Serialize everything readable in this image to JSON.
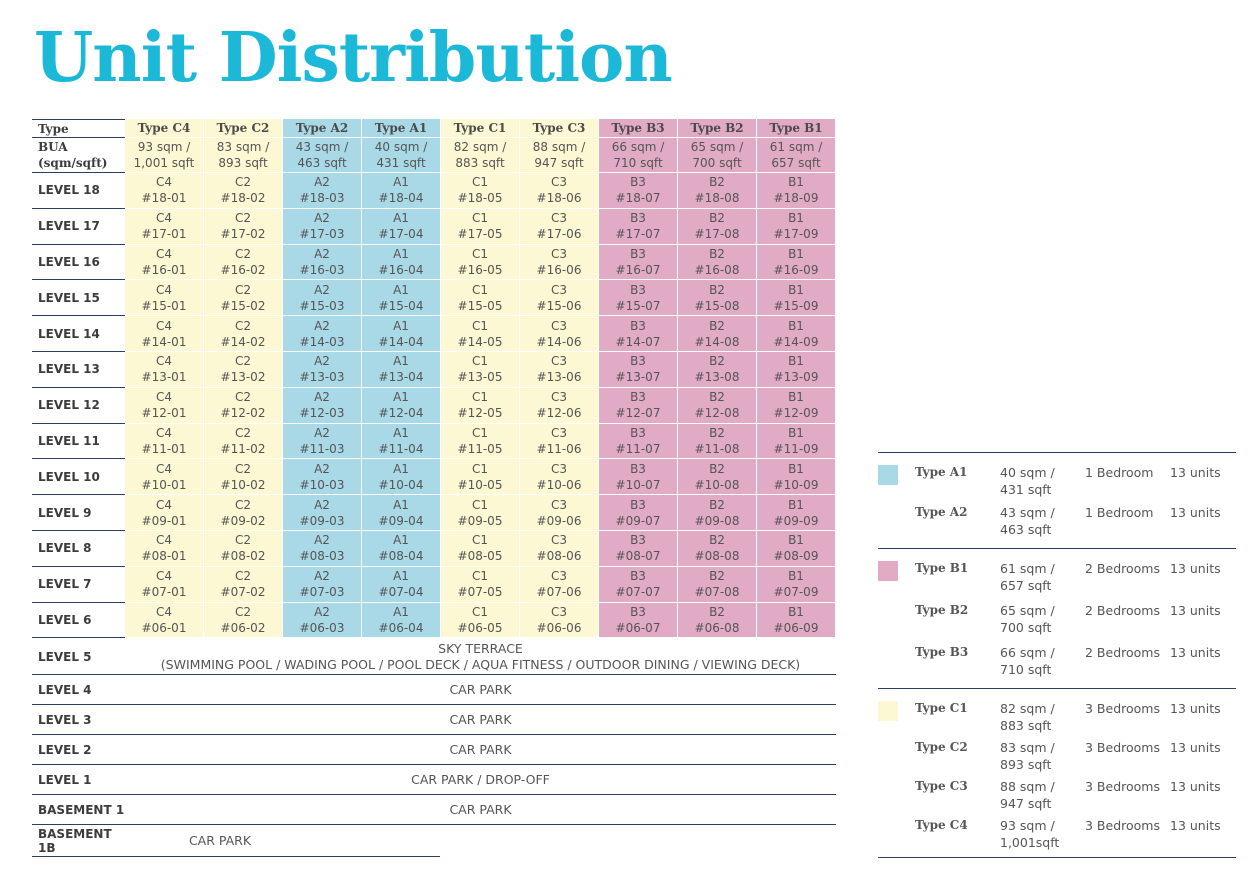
{
  "title": "Unit Distribution",
  "table": {
    "corner": "Type",
    "bua_label": [
      "BUA",
      "(sqm/sqft)"
    ],
    "columns": [
      {
        "name": "Type C4",
        "color": "#fcf8d3",
        "bua": [
          "93 sqm /",
          "1,001 sqft"
        ]
      },
      {
        "name": "Type C2",
        "color": "#fcf8d3",
        "bua": [
          "83 sqm /",
          "893 sqft"
        ]
      },
      {
        "name": "Type A2",
        "color": "#a9d9e7",
        "bua": [
          "43 sqm /",
          "463 sqft"
        ]
      },
      {
        "name": "Type A1",
        "color": "#a9d9e7",
        "bua": [
          "40 sqm /",
          "431 sqft"
        ]
      },
      {
        "name": "Type C1",
        "color": "#fcf8d3",
        "bua": [
          "82 sqm /",
          "883 sqft"
        ]
      },
      {
        "name": "Type C3",
        "color": "#fcf8d3",
        "bua": [
          "88 sqm /",
          "947 sqft"
        ]
      },
      {
        "name": "Type B3",
        "color": "#e2abc5",
        "bua": [
          "66 sqm /",
          "710 sqft"
        ]
      },
      {
        "name": "Type B2",
        "color": "#e2abc5",
        "bua": [
          "65 sqm /",
          "700 sqft"
        ]
      },
      {
        "name": "Type B1",
        "color": "#e2abc5",
        "bua": [
          "61 sqm /",
          "657 sqft"
        ]
      }
    ],
    "rows": [
      {
        "level": "LEVEL 18",
        "units": [
          [
            "C4",
            "#18-01"
          ],
          [
            "C2",
            "#18-02"
          ],
          [
            "A2",
            "#18-03"
          ],
          [
            "A1",
            "#18-04"
          ],
          [
            "C1",
            "#18-05"
          ],
          [
            "C3",
            "#18-06"
          ],
          [
            "B3",
            "#18-07"
          ],
          [
            "B2",
            "#18-08"
          ],
          [
            "B1",
            "#18-09"
          ]
        ]
      },
      {
        "level": "LEVEL 17",
        "units": [
          [
            "C4",
            "#17-01"
          ],
          [
            "C2",
            "#17-02"
          ],
          [
            "A2",
            "#17-03"
          ],
          [
            "A1",
            "#17-04"
          ],
          [
            "C1",
            "#17-05"
          ],
          [
            "C3",
            "#17-06"
          ],
          [
            "B3",
            "#17-07"
          ],
          [
            "B2",
            "#17-08"
          ],
          [
            "B1",
            "#17-09"
          ]
        ]
      },
      {
        "level": "LEVEL 16",
        "units": [
          [
            "C4",
            "#16-01"
          ],
          [
            "C2",
            "#16-02"
          ],
          [
            "A2",
            "#16-03"
          ],
          [
            "A1",
            "#16-04"
          ],
          [
            "C1",
            "#16-05"
          ],
          [
            "C3",
            "#16-06"
          ],
          [
            "B3",
            "#16-07"
          ],
          [
            "B2",
            "#16-08"
          ],
          [
            "B1",
            "#16-09"
          ]
        ]
      },
      {
        "level": "LEVEL 15",
        "units": [
          [
            "C4",
            "#15-01"
          ],
          [
            "C2",
            "#15-02"
          ],
          [
            "A2",
            "#15-03"
          ],
          [
            "A1",
            "#15-04"
          ],
          [
            "C1",
            "#15-05"
          ],
          [
            "C3",
            "#15-06"
          ],
          [
            "B3",
            "#15-07"
          ],
          [
            "B2",
            "#15-08"
          ],
          [
            "B1",
            "#15-09"
          ]
        ]
      },
      {
        "level": "LEVEL 14",
        "units": [
          [
            "C4",
            "#14-01"
          ],
          [
            "C2",
            "#14-02"
          ],
          [
            "A2",
            "#14-03"
          ],
          [
            "A1",
            "#14-04"
          ],
          [
            "C1",
            "#14-05"
          ],
          [
            "C3",
            "#14-06"
          ],
          [
            "B3",
            "#14-07"
          ],
          [
            "B2",
            "#14-08"
          ],
          [
            "B1",
            "#14-09"
          ]
        ]
      },
      {
        "level": "LEVEL 13",
        "units": [
          [
            "C4",
            "#13-01"
          ],
          [
            "C2",
            "#13-02"
          ],
          [
            "A2",
            "#13-03"
          ],
          [
            "A1",
            "#13-04"
          ],
          [
            "C1",
            "#13-05"
          ],
          [
            "C3",
            "#13-06"
          ],
          [
            "B3",
            "#13-07"
          ],
          [
            "B2",
            "#13-08"
          ],
          [
            "B1",
            "#13-09"
          ]
        ]
      },
      {
        "level": "LEVEL 12",
        "units": [
          [
            "C4",
            "#12-01"
          ],
          [
            "C2",
            "#12-02"
          ],
          [
            "A2",
            "#12-03"
          ],
          [
            "A1",
            "#12-04"
          ],
          [
            "C1",
            "#12-05"
          ],
          [
            "C3",
            "#12-06"
          ],
          [
            "B3",
            "#12-07"
          ],
          [
            "B2",
            "#12-08"
          ],
          [
            "B1",
            "#12-09"
          ]
        ]
      },
      {
        "level": "LEVEL 11",
        "units": [
          [
            "C4",
            "#11-01"
          ],
          [
            "C2",
            "#11-02"
          ],
          [
            "A2",
            "#11-03"
          ],
          [
            "A1",
            "#11-04"
          ],
          [
            "C1",
            "#11-05"
          ],
          [
            "C3",
            "#11-06"
          ],
          [
            "B3",
            "#11-07"
          ],
          [
            "B2",
            "#11-08"
          ],
          [
            "B1",
            "#11-09"
          ]
        ]
      },
      {
        "level": "LEVEL 10",
        "units": [
          [
            "C4",
            "#10-01"
          ],
          [
            "C2",
            "#10-02"
          ],
          [
            "A2",
            "#10-03"
          ],
          [
            "A1",
            "#10-04"
          ],
          [
            "C1",
            "#10-05"
          ],
          [
            "C3",
            "#10-06"
          ],
          [
            "B3",
            "#10-07"
          ],
          [
            "B2",
            "#10-08"
          ],
          [
            "B1",
            "#10-09"
          ]
        ]
      },
      {
        "level": "LEVEL 9",
        "units": [
          [
            "C4",
            "#09-01"
          ],
          [
            "C2",
            "#09-02"
          ],
          [
            "A2",
            "#09-03"
          ],
          [
            "A1",
            "#09-04"
          ],
          [
            "C1",
            "#09-05"
          ],
          [
            "C3",
            "#09-06"
          ],
          [
            "B3",
            "#09-07"
          ],
          [
            "B2",
            "#09-08"
          ],
          [
            "B1",
            "#09-09"
          ]
        ]
      },
      {
        "level": "LEVEL 8",
        "units": [
          [
            "C4",
            "#08-01"
          ],
          [
            "C2",
            "#08-02"
          ],
          [
            "A2",
            "#08-03"
          ],
          [
            "A1",
            "#08-04"
          ],
          [
            "C1",
            "#08-05"
          ],
          [
            "C3",
            "#08-06"
          ],
          [
            "B3",
            "#08-07"
          ],
          [
            "B2",
            "#08-08"
          ],
          [
            "B1",
            "#08-09"
          ]
        ]
      },
      {
        "level": "LEVEL 7",
        "units": [
          [
            "C4",
            "#07-01"
          ],
          [
            "C2",
            "#07-02"
          ],
          [
            "A2",
            "#07-03"
          ],
          [
            "A1",
            "#07-04"
          ],
          [
            "C1",
            "#07-05"
          ],
          [
            "C3",
            "#07-06"
          ],
          [
            "B3",
            "#07-07"
          ],
          [
            "B2",
            "#07-08"
          ],
          [
            "B1",
            "#07-09"
          ]
        ]
      },
      {
        "level": "LEVEL 6",
        "units": [
          [
            "C4",
            "#06-01"
          ],
          [
            "C2",
            "#06-02"
          ],
          [
            "A2",
            "#06-03"
          ],
          [
            "A1",
            "#06-04"
          ],
          [
            "C1",
            "#06-05"
          ],
          [
            "C3",
            "#06-06"
          ],
          [
            "B3",
            "#06-07"
          ],
          [
            "B2",
            "#06-08"
          ],
          [
            "B1",
            "#06-09"
          ]
        ]
      }
    ],
    "lower": [
      {
        "level": "LEVEL 5",
        "text": [
          "SKY TERRACE",
          "(SWIMMING POOL / WADING POOL / POOL DECK / AQUA FITNESS / OUTDOOR DINING / VIEWING DECK)"
        ]
      },
      {
        "level": "LEVEL 4",
        "text": [
          "CAR PARK"
        ]
      },
      {
        "level": "LEVEL 3",
        "text": [
          "CAR PARK"
        ]
      },
      {
        "level": "LEVEL 2",
        "text": [
          "CAR PARK"
        ]
      },
      {
        "level": "LEVEL 1",
        "text": [
          "CAR PARK / DROP-OFF"
        ]
      },
      {
        "level": "BASEMENT 1",
        "text": [
          "CAR PARK"
        ]
      },
      {
        "level": "BASEMENT 1B",
        "text": [
          "CAR PARK"
        ]
      }
    ]
  },
  "legend": [
    {
      "color": "#a9d9e7",
      "items": [
        {
          "type": "Type A1",
          "size": [
            "40 sqm /",
            "431 sqft"
          ],
          "bedrooms": "1 Bedroom",
          "units": "13 units"
        },
        {
          "type": "Type A2",
          "size": [
            "43 sqm /",
            "463 sqft"
          ],
          "bedrooms": "1 Bedroom",
          "units": "13 units"
        }
      ]
    },
    {
      "color": "#e2abc5",
      "items": [
        {
          "type": "Type B1",
          "size": [
            "61 sqm /",
            "657 sqft"
          ],
          "bedrooms": "2 Bedrooms",
          "units": "13 units"
        },
        {
          "type": "Type B2",
          "size": [
            "65 sqm /",
            "700 sqft"
          ],
          "bedrooms": "2 Bedrooms",
          "units": "13 units"
        },
        {
          "type": "Type B3",
          "size": [
            "66 sqm /",
            "710 sqft"
          ],
          "bedrooms": "2 Bedrooms",
          "units": "13 units"
        }
      ]
    },
    {
      "color": "#fcf8d3",
      "items": [
        {
          "type": "Type C1",
          "size": [
            "82 sqm /",
            "883 sqft"
          ],
          "bedrooms": "3 Bedrooms",
          "units": "13 units"
        },
        {
          "type": "Type C2",
          "size": [
            "83 sqm /",
            "893 sqft"
          ],
          "bedrooms": "3 Bedrooms",
          "units": "13 units"
        },
        {
          "type": "Type C3",
          "size": [
            "88 sqm /",
            "947 sqft"
          ],
          "bedrooms": "3 Bedrooms",
          "units": "13 units"
        },
        {
          "type": "Type C4",
          "size": [
            "93 sqm /",
            "1,001sqft"
          ],
          "bedrooms": "3 Bedrooms",
          "units": "13 units"
        }
      ]
    }
  ]
}
